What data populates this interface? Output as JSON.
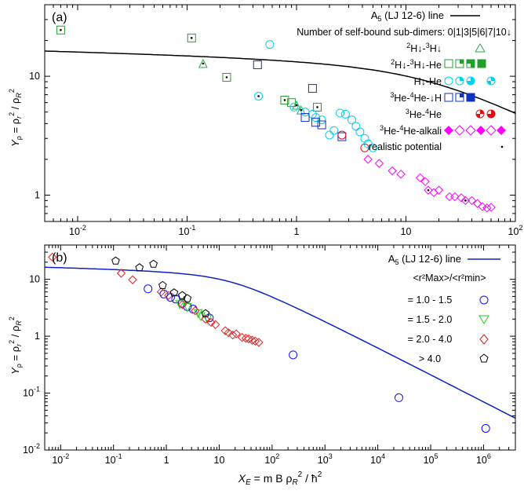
{
  "chart_data": [
    {
      "type": "scatter",
      "panel_label": "(a)",
      "xscale": "log",
      "yscale": "log",
      "xlim": [
        0.005,
        100
      ],
      "ylim": [
        0.6,
        40
      ],
      "ylabel": "Yρ = ρr² / ρR²",
      "ylabel_main": "Y",
      "ylabel_sub": "ρ",
      "ylabel_rest": " = ρ",
      "ylabel_r": "r",
      "ylabel_mid": " / ρ",
      "ylabel_R": "R",
      "ylabel_two": "2",
      "x_ticks": [
        {
          "v": 0.01,
          "m": "10",
          "e": "-2"
        },
        {
          "v": 0.1,
          "m": "10",
          "e": "-1"
        },
        {
          "v": 1,
          "m": "1",
          "e": ""
        },
        {
          "v": 10,
          "m": "10",
          "e": ""
        },
        {
          "v": 100,
          "m": "10",
          "e": "2"
        }
      ],
      "y_ticks": [
        {
          "v": 1,
          "m": "1",
          "e": ""
        },
        {
          "v": 10,
          "m": "10",
          "e": ""
        }
      ],
      "line_label": "A5 (LJ 12-6) line",
      "line_label_main": "A",
      "line_label_sub": "5",
      "line_label_rest": " (LJ 12-6) line",
      "line_color": "#000000",
      "subdimer_header": "Number of self-bound sub-dimers: 0|1|3|5|6|7|10↓",
      "legend": [
        {
          "label": "²H↓-³H↓",
          "pre": "2",
          "body": "H↓-",
          "pre2": "3",
          "body2": "H↓",
          "color": "#22b14c"
        },
        {
          "label": "²H↓-³H↓-He",
          "pre": "2",
          "body": "H↓-",
          "pre2": "3",
          "body2": "H↓-He",
          "color": "#22a02c"
        },
        {
          "label": "H↓-He",
          "pre": "",
          "body": "H↓-He",
          "pre2": "",
          "body2": "",
          "color": "#00d0f0"
        },
        {
          "label": "³He-⁴He-↓H",
          "pre": "3",
          "body": "He-",
          "pre2": "4",
          "body2": "He-↓H",
          "color": "#1030c0"
        },
        {
          "label": "³He-⁴He",
          "pre": "3",
          "body": "He-",
          "pre2": "4",
          "body2": "He",
          "color": "#e01010"
        },
        {
          "label": "³He-⁴He-alkali",
          "pre": "3",
          "body": "He-",
          "pre2": "4",
          "body2": "He-alkali",
          "color": "#ff00ff"
        },
        {
          "label": "realistic potential",
          "pre": "",
          "body": "realistic potential",
          "pre2": "",
          "body2": "",
          "color": "#000000"
        }
      ],
      "series": [
        {
          "name": "²H↓-³H↓",
          "marker": "triangle",
          "color": "#22b14c",
          "points": [
            [
              0.14,
              12.8
            ],
            [
              1.0,
              5.7
            ],
            [
              1.1,
              5.2
            ]
          ]
        },
        {
          "name": "²H↓-³H↓-He",
          "marker": "square",
          "color": "#22a02c",
          "points": [
            [
              0.007,
              24.5
            ],
            [
              0.11,
              21.0
            ],
            [
              0.23,
              9.8
            ],
            [
              0.78,
              6.3
            ],
            [
              0.9,
              6.0
            ],
            [
              1.55,
              5.5
            ]
          ]
        },
        {
          "name": "H↓-He",
          "marker": "circle",
          "color": "#00d0f0",
          "points": [
            [
              0.57,
              18.5
            ],
            [
              0.45,
              6.8
            ],
            [
              0.95,
              5.5
            ],
            [
              1.2,
              5.0
            ],
            [
              1.4,
              4.8
            ],
            [
              1.5,
              4.5
            ],
            [
              1.7,
              4.3
            ],
            [
              2.5,
              4.9
            ],
            [
              2.8,
              4.8
            ],
            [
              3.2,
              4.3
            ],
            [
              3.5,
              3.8
            ],
            [
              3.8,
              3.4
            ],
            [
              2.2,
              3.5
            ],
            [
              2.0,
              3.2
            ],
            [
              4.2,
              3.0
            ],
            [
              4.5,
              2.7
            ],
            [
              5.0,
              2.5
            ]
          ]
        },
        {
          "name": "³He-⁴He-↓H",
          "marker": "square",
          "color": "#1030c0",
          "points": [
            [
              0.44,
              12.5
            ],
            [
              1.4,
              7.9
            ],
            [
              1.2,
              4.5
            ],
            [
              1.5,
              4.1
            ],
            [
              1.7,
              3.9
            ],
            [
              2.6,
              3.1
            ]
          ]
        },
        {
          "name": "³He-⁴He",
          "marker": "circle",
          "color": "#e01010",
          "points": [
            [
              2.6,
              3.2
            ],
            [
              4.2,
              2.5
            ]
          ]
        },
        {
          "name": "³He-⁴He-alkali",
          "marker": "diamond",
          "color": "#ff00ff",
          "points": [
            [
              4.5,
              2.0
            ],
            [
              5.7,
              1.85
            ],
            [
              7.5,
              1.6
            ],
            [
              9.0,
              1.5
            ],
            [
              13.5,
              1.4
            ],
            [
              15,
              1.3
            ],
            [
              16,
              1.1
            ],
            [
              18,
              1.05
            ],
            [
              20,
              1.1
            ],
            [
              25,
              0.97
            ],
            [
              28,
              0.97
            ],
            [
              32,
              0.95
            ],
            [
              35,
              0.9
            ],
            [
              40,
              0.9
            ],
            [
              45,
              0.85
            ],
            [
              50,
              0.8
            ],
            [
              55,
              0.78
            ],
            [
              60,
              0.79
            ]
          ]
        },
        {
          "name": "realistic potential",
          "marker": "dot",
          "color": "#000000",
          "points": [
            [
              0.007,
              24.5
            ],
            [
              0.11,
              21.0
            ],
            [
              0.14,
              12.8
            ],
            [
              0.23,
              9.8
            ],
            [
              0.45,
              6.8
            ],
            [
              0.78,
              6.3
            ],
            [
              1.0,
              5.7
            ],
            [
              1.1,
              5.2
            ],
            [
              1.55,
              5.5
            ],
            [
              16,
              1.1
            ],
            [
              35,
              0.9
            ]
          ]
        }
      ]
    },
    {
      "type": "scatter",
      "panel_label": "(b)",
      "xscale": "log",
      "yscale": "log",
      "xlim": [
        0.005,
        4000000
      ],
      "ylim": [
        0.01,
        40
      ],
      "xlabel": "XE = m B ρR² / ħ²",
      "xlabel_main": "X",
      "xlabel_sub": "E",
      "xlabel_rest": " = m B ρ",
      "xlabel_R": "R",
      "xlabel_two": "2",
      "xlabel_tail": " / ħ",
      "xlabel_two2": "2",
      "ylabel": "Yρ = ρr² / ρR²",
      "ylabel_main": "Y",
      "ylabel_sub": "ρ",
      "ylabel_rest": " = ρ",
      "ylabel_r": "r",
      "ylabel_mid": " / ρ",
      "ylabel_R": "R",
      "ylabel_two": "2",
      "x_ticks": [
        {
          "v": 0.01,
          "m": "10",
          "e": "-2"
        },
        {
          "v": 0.1,
          "m": "10",
          "e": "-1"
        },
        {
          "v": 1,
          "m": "1",
          "e": ""
        },
        {
          "v": 10,
          "m": "10",
          "e": ""
        },
        {
          "v": 100,
          "m": "10",
          "e": "2"
        },
        {
          "v": 1000,
          "m": "10",
          "e": "3"
        },
        {
          "v": 10000,
          "m": "10",
          "e": "4"
        },
        {
          "v": 100000,
          "m": "10",
          "e": "5"
        },
        {
          "v": 1000000,
          "m": "10",
          "e": "6"
        }
      ],
      "y_ticks": [
        {
          "v": 0.01,
          "m": "10",
          "e": "-2"
        },
        {
          "v": 0.1,
          "m": "10",
          "e": "-1"
        },
        {
          "v": 1,
          "m": "1",
          "e": ""
        },
        {
          "v": 10,
          "m": "10",
          "e": ""
        }
      ],
      "line_label": "A5 (LJ 12-6) line",
      "line_label_main": "A",
      "line_label_sub": "5",
      "line_label_rest": " (LJ 12-6) line",
      "line_color": "#1020c8",
      "ratio_header": "<r²Max>/<r²min>",
      "legend": [
        {
          "label": "= 1.0 - 1.5",
          "marker": "circle",
          "color": "#1010ff"
        },
        {
          "label": "= 1.5 - 2.0",
          "marker": "triangle-down",
          "color": "#22cc22"
        },
        {
          "label": "= 2.0 - 4.0",
          "marker": "diamond",
          "color": "#e02020"
        },
        {
          "label": "> 4.0",
          "marker": "pentagon",
          "color": "#000000"
        }
      ],
      "series": [
        {
          "name": "= 1.0 - 1.5",
          "marker": "circle",
          "color": "#1010ff",
          "points": [
            [
              0.45,
              6.8
            ],
            [
              0.9,
              5.5
            ],
            [
              1.2,
              4.8
            ],
            [
              1.5,
              4.5
            ],
            [
              2.0,
              3.8
            ],
            [
              2.5,
              3.3
            ],
            [
              3.2,
              3.0
            ],
            [
              6.5,
              2.1
            ],
            [
              250,
              0.47
            ],
            [
              25000,
              0.083
            ],
            [
              1100000,
              0.024
            ]
          ]
        },
        {
          "name": "= 1.5 - 2.0",
          "marker": "triangle-down",
          "color": "#22cc22",
          "points": [
            [
              1.8,
              3.6
            ],
            [
              2.5,
              3.2
            ],
            [
              4.0,
              2.5
            ],
            [
              4.5,
              2.2
            ],
            [
              6.0,
              2.0
            ]
          ]
        },
        {
          "name": "= 2.0 - 4.0",
          "marker": "diamond",
          "color": "#e02020",
          "points": [
            [
              0.007,
              24.5
            ],
            [
              0.14,
              12.8
            ],
            [
              0.23,
              9.8
            ],
            [
              0.8,
              6.0
            ],
            [
              1.1,
              5.2
            ],
            [
              2.0,
              3.6
            ],
            [
              3.5,
              2.8
            ],
            [
              5.5,
              2.0
            ],
            [
              7.0,
              1.75
            ],
            [
              8.5,
              1.6
            ],
            [
              13,
              1.25
            ],
            [
              15,
              1.15
            ],
            [
              18,
              1.05
            ],
            [
              21,
              1.1
            ],
            [
              27,
              0.95
            ],
            [
              32,
              0.92
            ],
            [
              36,
              0.9
            ],
            [
              42,
              0.85
            ],
            [
              48,
              0.82
            ],
            [
              56,
              0.78
            ]
          ]
        },
        {
          "name": "> 4.0",
          "marker": "pentagon",
          "color": "#000000",
          "points": [
            [
              0.11,
              21.0
            ],
            [
              0.31,
              16.0
            ],
            [
              0.57,
              18.5
            ],
            [
              0.85,
              7.8
            ],
            [
              1.4,
              5.8
            ],
            [
              2.0,
              5.2
            ],
            [
              2.5,
              4.6
            ],
            [
              5.5,
              2.5
            ]
          ]
        }
      ]
    }
  ]
}
